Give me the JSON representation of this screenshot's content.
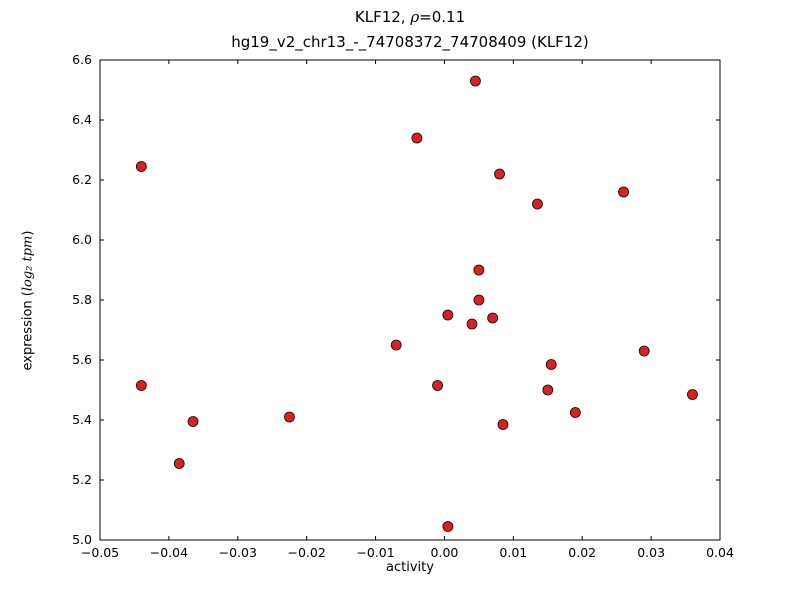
{
  "title": {
    "line1_prefix": "KLF12, ",
    "line1_rho": "ρ",
    "line1_value": "=0.11",
    "line2": "hg19_v2_chr13_-_74708372_74708409 (KLF12)"
  },
  "xlabel": "activity",
  "ylabel": {
    "prefix": "expression (",
    "math": "log₂ tpm",
    "suffix": ")"
  },
  "chart_data": {
    "type": "scatter",
    "title": "KLF12, ρ=0.11 — hg19_v2_chr13_-_74708372_74708409 (KLF12)",
    "xlabel": "activity",
    "ylabel": "expression (log2 tpm)",
    "xlim": [
      -0.05,
      0.04
    ],
    "ylim": [
      5.0,
      6.6
    ],
    "xticks": [
      -0.05,
      -0.04,
      -0.03,
      -0.02,
      -0.01,
      0.0,
      0.01,
      0.02,
      0.03,
      0.04
    ],
    "yticks": [
      5.0,
      5.2,
      5.4,
      5.6,
      5.8,
      6.0,
      6.2,
      6.4,
      6.6
    ],
    "grid": false,
    "marker": "circle",
    "marker_color": "#d62222",
    "marker_edge_color": "#1a0000",
    "points": [
      [
        -0.044,
        6.245
      ],
      [
        -0.044,
        5.515
      ],
      [
        -0.0365,
        5.395
      ],
      [
        -0.0385,
        5.255
      ],
      [
        -0.0225,
        5.41
      ],
      [
        -0.007,
        5.65
      ],
      [
        -0.004,
        6.34
      ],
      [
        -0.001,
        5.515
      ],
      [
        0.0005,
        5.75
      ],
      [
        0.0005,
        5.045
      ],
      [
        0.0045,
        6.53
      ],
      [
        0.005,
        5.9
      ],
      [
        0.004,
        5.72
      ],
      [
        0.005,
        5.8
      ],
      [
        0.007,
        5.74
      ],
      [
        0.008,
        6.22
      ],
      [
        0.0085,
        5.385
      ],
      [
        0.0135,
        6.12
      ],
      [
        0.0155,
        5.585
      ],
      [
        0.015,
        5.5
      ],
      [
        0.019,
        5.425
      ],
      [
        0.026,
        6.16
      ],
      [
        0.029,
        5.63
      ],
      [
        0.036,
        5.485
      ]
    ]
  }
}
